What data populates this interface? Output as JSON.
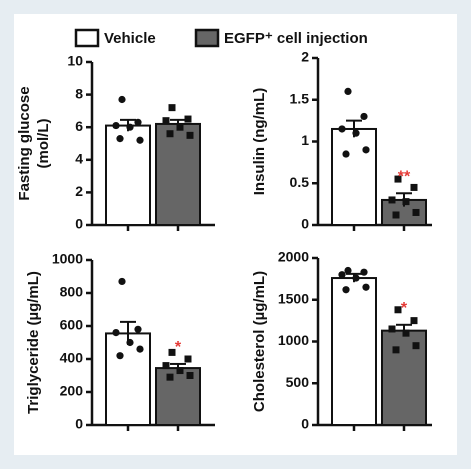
{
  "legend": [
    {
      "name": "Vehicle",
      "color": "#ffffff"
    },
    {
      "name": "EGFP⁺ cell injection",
      "color": "#666666"
    }
  ],
  "chart_data": [
    {
      "type": "bar",
      "ylabel": [
        "Fasting glucose",
        "(mol/L)"
      ],
      "values": [
        6.1,
        6.2
      ],
      "errors": [
        0.35,
        0.25
      ],
      "points": [
        [
          7.7,
          6.3,
          6.1,
          6.0,
          5.2,
          5.3
        ],
        [
          7.2,
          6.5,
          6.4,
          6.0,
          5.5,
          5.6
        ]
      ],
      "ylim": [
        0,
        10
      ],
      "yticks": [
        0,
        2,
        4,
        6,
        8,
        10
      ]
    },
    {
      "type": "bar",
      "ylabel": [
        "Insulin (ng/mL)"
      ],
      "values": [
        1.15,
        0.3
      ],
      "errors": [
        0.1,
        0.08
      ],
      "points": [
        [
          1.6,
          1.3,
          1.15,
          1.1,
          0.9,
          0.85
        ],
        [
          0.55,
          0.45,
          0.3,
          0.28,
          0.15,
          0.12
        ]
      ],
      "annotations": [
        null,
        "**"
      ],
      "annotation_color": "#e53935",
      "ylim": [
        0,
        2
      ],
      "yticks": [
        0,
        0.5,
        1,
        1.5,
        2
      ]
    },
    {
      "type": "bar",
      "ylabel": [
        "Triglyceride (µg/mL)"
      ],
      "values": [
        555,
        345
      ],
      "errors": [
        70,
        25
      ],
      "points": [
        [
          870,
          580,
          560,
          500,
          460,
          420
        ],
        [
          440,
          400,
          360,
          330,
          300,
          290
        ]
      ],
      "annotations": [
        null,
        "*"
      ],
      "annotation_color": "#e53935",
      "ylim": [
        0,
        1000
      ],
      "yticks": [
        0,
        200,
        400,
        600,
        800,
        1000
      ]
    },
    {
      "type": "bar",
      "ylabel": [
        "Cholesterol (µg/mL)"
      ],
      "values": [
        1760,
        1130
      ],
      "errors": [
        50,
        70
      ],
      "points": [
        [
          1850,
          1830,
          1800,
          1760,
          1650,
          1620
        ],
        [
          1380,
          1250,
          1150,
          1100,
          950,
          900
        ]
      ],
      "annotations": [
        null,
        "*"
      ],
      "annotation_color": "#e53935",
      "ylim": [
        0,
        2000
      ],
      "yticks": [
        0,
        500,
        1000,
        1500,
        2000
      ]
    }
  ]
}
